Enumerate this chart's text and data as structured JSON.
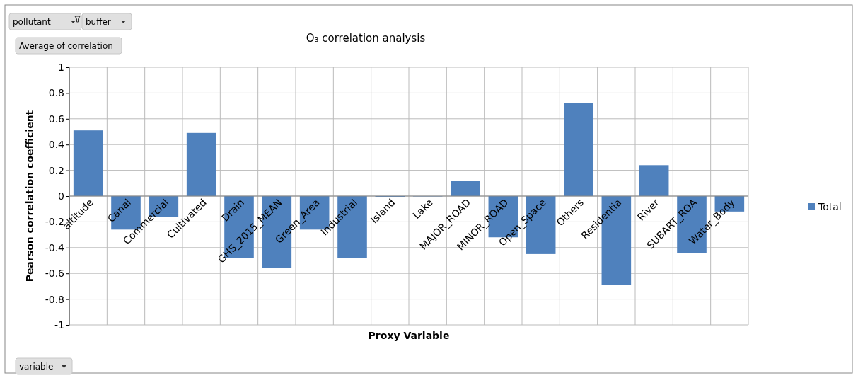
{
  "chart_data": {
    "type": "bar",
    "title": "O₃ correlation analysis",
    "xlabel": "Proxy Variable",
    "ylabel": "Pearson correlation coefficient",
    "categories": [
      "altitude",
      "Canal",
      "Commercial",
      "Cultivated",
      "Drain",
      "GHS_2015_MEAN",
      "Green_Area",
      "Industrial",
      "Island",
      "Lake",
      "MAJOR_ROAD",
      "MINOR_ROAD",
      "Open_Space",
      "Others",
      "Residentia",
      "River",
      "SUBART_ROA",
      "Water_Body"
    ],
    "series": [
      {
        "name": "Total",
        "color": "#4f81bd",
        "values": [
          0.51,
          -0.26,
          -0.16,
          0.49,
          -0.48,
          -0.56,
          -0.26,
          -0.48,
          -0.01,
          0,
          0.12,
          -0.32,
          -0.45,
          0.72,
          -0.69,
          0.24,
          -0.44,
          -0.12
        ]
      }
    ],
    "ylim": [
      -1,
      1
    ],
    "yticks": [
      -1,
      -0.8,
      -0.6,
      -0.4,
      -0.2,
      0,
      0.2,
      0.4,
      0.6,
      0.8,
      1
    ],
    "grid": true,
    "legend": "right",
    "annotations": [
      "pollutant",
      "buffer",
      "Average of correlation",
      "variable"
    ]
  }
}
